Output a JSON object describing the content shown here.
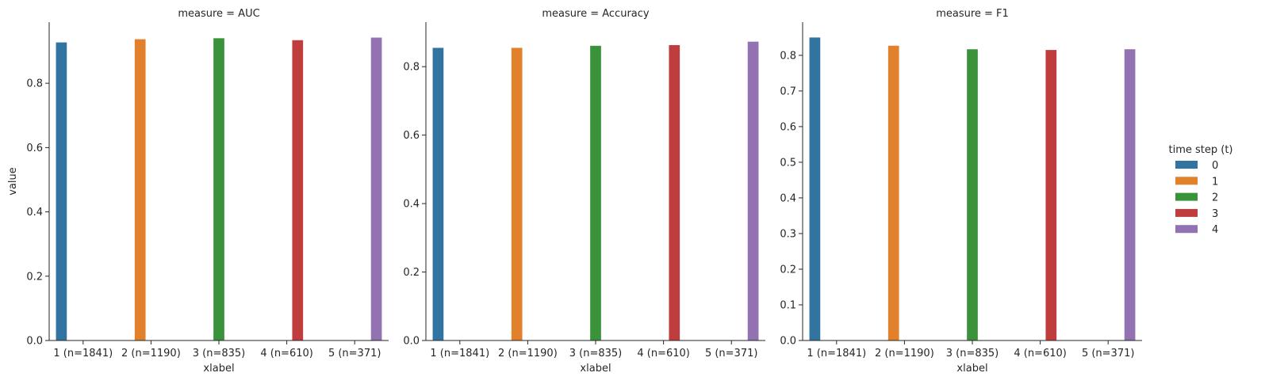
{
  "chart_data": [
    {
      "type": "bar",
      "title": "measure = AUC",
      "xlabel": "xlabel",
      "ylabel": "value",
      "categories": [
        "1 (n=1841)",
        "2 (n=1190)",
        "3 (n=835)",
        "4 (n=610)",
        "5 (n=371)"
      ],
      "series": [
        {
          "name": "0",
          "values": [
            0.927,
            null,
            null,
            null,
            null
          ]
        },
        {
          "name": "1",
          "values": [
            null,
            0.937,
            null,
            null,
            null
          ]
        },
        {
          "name": "2",
          "values": [
            null,
            null,
            0.94,
            null,
            null
          ]
        },
        {
          "name": "3",
          "values": [
            null,
            null,
            null,
            0.934,
            null
          ]
        },
        {
          "name": "4",
          "values": [
            null,
            null,
            null,
            null,
            0.942
          ]
        }
      ],
      "yticks": [
        0.0,
        0.2,
        0.4,
        0.6,
        0.8
      ],
      "ytick_labels": [
        "0.0",
        "0.2",
        "0.4",
        "0.6",
        "0.8"
      ],
      "ylim": [
        0,
        0.99
      ]
    },
    {
      "type": "bar",
      "title": "measure = Accuracy",
      "xlabel": "xlabel",
      "ylabel": "",
      "categories": [
        "1 (n=1841)",
        "2 (n=1190)",
        "3 (n=835)",
        "4 (n=610)",
        "5 (n=371)"
      ],
      "series": [
        {
          "name": "0",
          "values": [
            0.855,
            null,
            null,
            null,
            null
          ]
        },
        {
          "name": "1",
          "values": [
            null,
            0.855,
            null,
            null,
            null
          ]
        },
        {
          "name": "2",
          "values": [
            null,
            null,
            0.861,
            null,
            null
          ]
        },
        {
          "name": "3",
          "values": [
            null,
            null,
            null,
            0.863,
            null
          ]
        },
        {
          "name": "4",
          "values": [
            null,
            null,
            null,
            null,
            0.873
          ]
        }
      ],
      "yticks": [
        0.0,
        0.2,
        0.4,
        0.6,
        0.8
      ],
      "ytick_labels": [
        "0.0",
        "0.2",
        "0.4",
        "0.6",
        "0.8"
      ],
      "ylim": [
        0,
        0.93
      ]
    },
    {
      "type": "bar",
      "title": "measure = F1",
      "xlabel": "xlabel",
      "ylabel": "",
      "categories": [
        "1 (n=1841)",
        "2 (n=1190)",
        "3 (n=835)",
        "4 (n=610)",
        "5 (n=371)"
      ],
      "series": [
        {
          "name": "0",
          "values": [
            0.85,
            null,
            null,
            null,
            null
          ]
        },
        {
          "name": "1",
          "values": [
            null,
            0.827,
            null,
            null,
            null
          ]
        },
        {
          "name": "2",
          "values": [
            null,
            null,
            0.817,
            null,
            null
          ]
        },
        {
          "name": "3",
          "values": [
            null,
            null,
            null,
            0.815,
            null
          ]
        },
        {
          "name": "4",
          "values": [
            null,
            null,
            null,
            null,
            0.817
          ]
        }
      ],
      "yticks": [
        0.0,
        0.1,
        0.2,
        0.3,
        0.4,
        0.5,
        0.6,
        0.7,
        0.8
      ],
      "ytick_labels": [
        "0.0",
        "0.1",
        "0.2",
        "0.3",
        "0.4",
        "0.5",
        "0.6",
        "0.7",
        "0.8"
      ],
      "ylim": [
        0,
        0.893
      ]
    }
  ],
  "legend": {
    "title": "time step (t)",
    "placement": "right",
    "entries": [
      "0",
      "1",
      "2",
      "3",
      "4"
    ]
  },
  "colors": [
    "#3274a1",
    "#e1812c",
    "#3a923a",
    "#c03d3e",
    "#9372b2"
  ],
  "grid": false
}
